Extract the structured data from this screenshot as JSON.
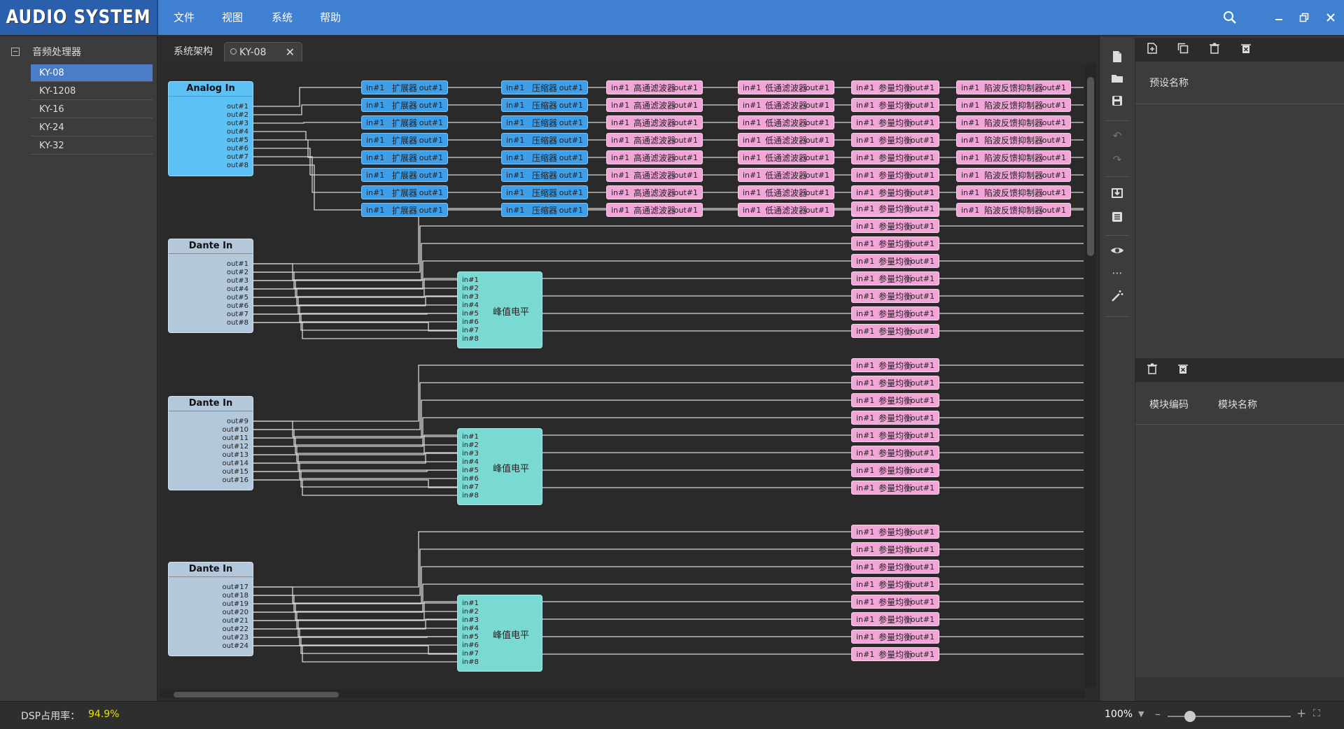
{
  "app": {
    "logo": "AUDIO SYSTEM"
  },
  "menu": [
    "文件",
    "视图",
    "系统",
    "帮助"
  ],
  "window_controls": {
    "search": "search-icon",
    "minimize": "minimize-icon",
    "restore": "restore-icon",
    "close": "close-icon"
  },
  "tree": {
    "root": "音频处理器",
    "items": [
      "KY-08",
      "KY-1208",
      "KY-16",
      "KY-24",
      "KY-32"
    ],
    "selected": "KY-08"
  },
  "tabs": [
    {
      "label": "系统架构"
    },
    {
      "label": "KY-08",
      "active": true
    }
  ],
  "blocks": {
    "analog": {
      "title": "Analog In",
      "ports": [
        "out#1",
        "out#2",
        "out#3",
        "out#4",
        "out#5",
        "out#6",
        "out#7",
        "out#8"
      ]
    },
    "dante1": {
      "title": "Dante In",
      "ports": [
        "out#1",
        "out#2",
        "out#3",
        "out#4",
        "out#5",
        "out#6",
        "out#7",
        "out#8"
      ]
    },
    "dante2": {
      "title": "Dante In",
      "ports": [
        "out#9",
        "out#10",
        "out#11",
        "out#12",
        "out#13",
        "out#14",
        "out#15",
        "out#16"
      ]
    },
    "dante3": {
      "title": "Dante In",
      "ports": [
        "out#17",
        "out#18",
        "out#19",
        "out#20",
        "out#21",
        "out#22",
        "out#23",
        "out#24"
      ]
    }
  },
  "modules": {
    "expander": "扩展器",
    "compressor": "压缩器",
    "highpass": "高通滤波器",
    "lowpass": "低通滤波器",
    "peq": "参量均衡",
    "feedback": "陷波反馈抑制器",
    "peak": "峰值电平",
    "in_label": "in#1",
    "out_label": "out#1"
  },
  "peak_inputs": [
    "in#1",
    "in#2",
    "in#3",
    "in#4",
    "in#5",
    "in#6",
    "in#7",
    "in#8"
  ],
  "right_panel": {
    "preset_name": "预设名称",
    "module_code": "模块编码",
    "module_name": "模块名称"
  },
  "status": {
    "dsp_label": "DSP占用率：",
    "dsp_value": "94.9%",
    "zoom": "100%"
  },
  "colors": {
    "titlebar": "#4080d0",
    "blue_module": "#3e9ee8",
    "pink_module": "#f2a6d8",
    "peak_module": "#7ad9d2",
    "dsp_value": "#f0e000"
  }
}
